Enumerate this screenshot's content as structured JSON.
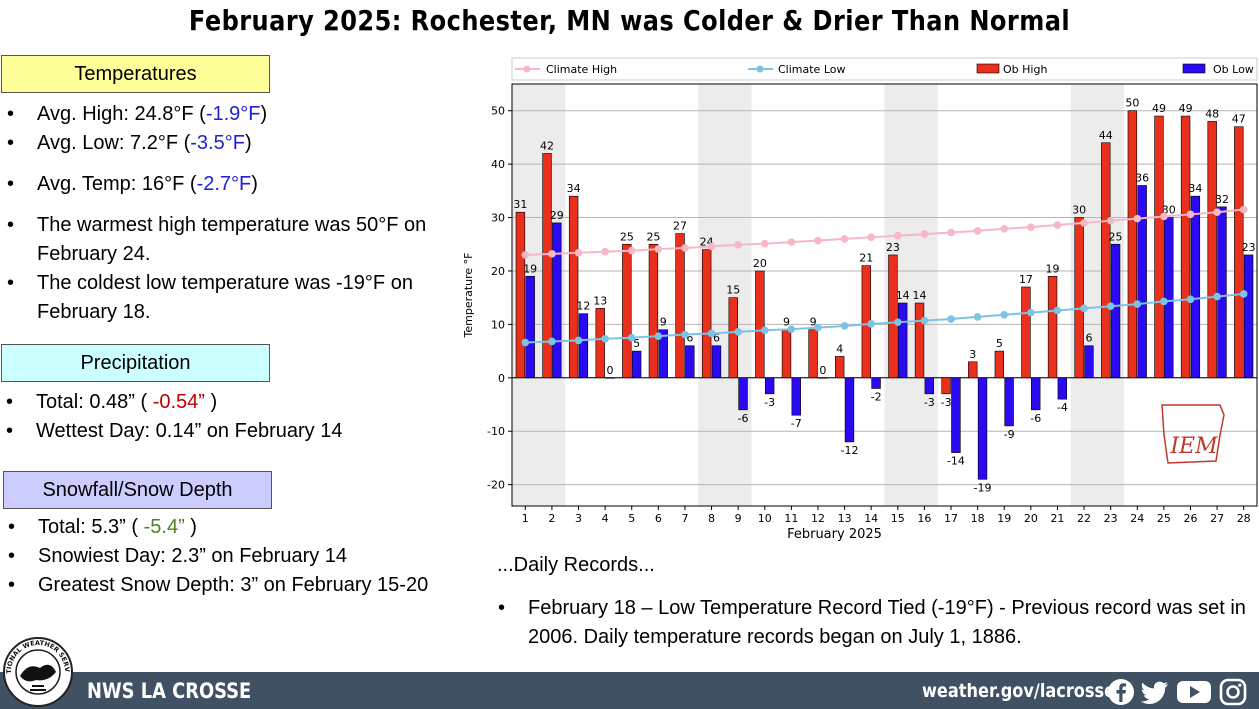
{
  "title": "February 2025:  Rochester, MN was Colder & Drier Than Normal",
  "temperatures": {
    "heading": "Temperatures",
    "avg_high_label": "Avg. High:  24.8°F (",
    "avg_high_dep": "-1.9°F",
    "avg_low_label": "Avg. Low:  7.2°F (",
    "avg_low_dep": "-3.5°F",
    "avg_temp_label": "Avg. Temp:  16°F (",
    "avg_temp_dep": "-2.7°F",
    "close_paren": ")",
    "warmest": "The warmest high temperature was 50°F on February 24.",
    "coldest": "The coldest low temperature was -19°F on February 18."
  },
  "precipitation": {
    "heading": "Precipitation",
    "total_label": "Total:  0.48” ( ",
    "total_dep": "-0.54”",
    "total_close": " )",
    "wettest": "Wettest Day:  0.14” on February 14"
  },
  "snowfall": {
    "heading": "Snowfall/Snow Depth",
    "total_label": "Total:  5.3” ( ",
    "total_dep": "-5.4”",
    "total_close": " )",
    "snowiest": "Snowiest Day:  2.3” on February 14",
    "greatest_depth": "Greatest Snow Depth:  3” on February 15-20"
  },
  "records": {
    "heading": "...Daily Records...",
    "items": [
      "February 18 – Low Temperature Record Tied (-19°F) - Previous record was set in 2006. Daily temperature records began on July 1, 1886."
    ]
  },
  "footer": {
    "name": "NWS LA CROSSE",
    "url": "weather.gov/lacrosse",
    "logo_text": "NATIONAL WEATHER SERVICE · LA CROSSE, WI"
  },
  "chart_data": {
    "type": "bar",
    "xlabel": "February 2025",
    "ylabel": "Temperature  °F",
    "ylim": [
      -24,
      55
    ],
    "yticks": [
      -20,
      -10,
      0,
      10,
      20,
      30,
      40,
      50
    ],
    "legend_position": "top",
    "watermark": "IEM",
    "categories": [
      1,
      2,
      3,
      4,
      5,
      6,
      7,
      8,
      9,
      10,
      11,
      12,
      13,
      14,
      15,
      16,
      17,
      18,
      19,
      20,
      21,
      22,
      23,
      24,
      25,
      26,
      27,
      28
    ],
    "weekend_shading_days": [
      [
        1,
        2
      ],
      [
        8,
        9
      ],
      [
        15,
        16
      ],
      [
        22,
        23
      ]
    ],
    "series": [
      {
        "name": "Ob High",
        "kind": "bar",
        "color": "#e8301c",
        "values": [
          31,
          42,
          34,
          13,
          25,
          25,
          27,
          24,
          15,
          20,
          9,
          9,
          4,
          21,
          23,
          14,
          -3,
          3,
          5,
          17,
          19,
          30,
          44,
          50,
          49,
          49,
          48,
          47
        ]
      },
      {
        "name": "Ob Low",
        "kind": "bar",
        "color": "#2a0af0",
        "values": [
          19,
          29,
          12,
          0,
          5,
          9,
          6,
          6,
          -6,
          -3,
          -7,
          0,
          -12,
          -2,
          14,
          -3,
          -14,
          -19,
          -9,
          -6,
          -4,
          6,
          25,
          36,
          30,
          34,
          32,
          23
        ]
      },
      {
        "name": "Climate High",
        "kind": "line",
        "color": "#f5b8c4",
        "values": [
          23.0,
          23.2,
          23.4,
          23.6,
          23.8,
          24.1,
          24.3,
          24.6,
          24.9,
          25.1,
          25.4,
          25.7,
          26.0,
          26.3,
          26.6,
          26.9,
          27.2,
          27.5,
          27.9,
          28.2,
          28.6,
          29.0,
          29.4,
          29.8,
          30.2,
          30.6,
          31.0,
          31.5
        ]
      },
      {
        "name": "Climate Low",
        "kind": "line",
        "color": "#7cc3e4",
        "values": [
          6.6,
          6.8,
          7.0,
          7.3,
          7.5,
          7.8,
          8.1,
          8.3,
          8.6,
          8.9,
          9.1,
          9.4,
          9.7,
          10.1,
          10.4,
          10.7,
          11.0,
          11.4,
          11.8,
          12.2,
          12.6,
          13.0,
          13.4,
          13.8,
          14.3,
          14.7,
          15.2,
          15.7
        ]
      }
    ]
  }
}
